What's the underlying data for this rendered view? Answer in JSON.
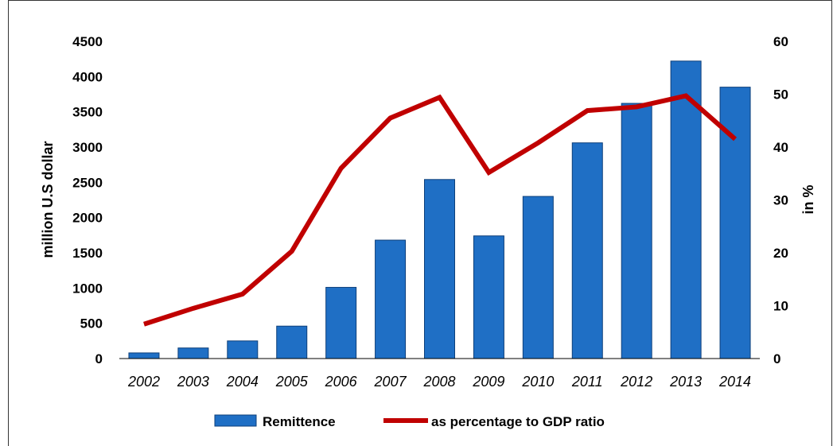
{
  "chart_data": {
    "type": "bar",
    "categories": [
      "2002",
      "2003",
      "2004",
      "2005",
      "2006",
      "2007",
      "2008",
      "2009",
      "2010",
      "2011",
      "2012",
      "2013",
      "2014"
    ],
    "series": [
      {
        "name": "Remittence",
        "type": "bar",
        "axis": "left",
        "color": "#1f6fc5",
        "values": [
          80,
          150,
          250,
          460,
          1010,
          1680,
          2540,
          1740,
          2300,
          3060,
          3620,
          4220,
          3850
        ]
      },
      {
        "name": "as percentage to GDP ratio",
        "type": "line",
        "axis": "right",
        "color": "#c00000",
        "values": [
          6.5,
          9.5,
          12.2,
          20.3,
          36.0,
          45.5,
          49.4,
          35.2,
          40.8,
          46.9,
          47.6,
          49.7,
          41.5
        ]
      }
    ],
    "ylabel": "million U.S dollar",
    "y2label": "in %",
    "ylim": [
      0,
      4500
    ],
    "y2lim": [
      0,
      60
    ],
    "yticks": [
      0,
      500,
      1000,
      1500,
      2000,
      2500,
      3000,
      3500,
      4000,
      4500
    ],
    "y2ticks": [
      0,
      10,
      20,
      30,
      40,
      50,
      60
    ],
    "grid": false,
    "legend_position": "bottom"
  }
}
